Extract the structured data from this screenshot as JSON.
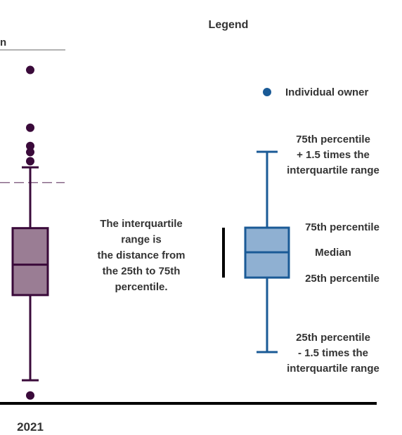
{
  "colors": {
    "data_box_stroke": "#3a0a3a",
    "data_box_fill": "#9a7d94",
    "data_points": "#3a0a3a",
    "legend_box_stroke": "#1a5a96",
    "legend_box_fill": "#8fb0d2",
    "legend_dot": "#1a5a96",
    "reference_line": "#8a6a8a",
    "axis": "#000000",
    "text": "#333333"
  },
  "chart_data": {
    "type": "box",
    "title": "",
    "legend_title": "Legend",
    "header_fragment": "n",
    "x_categories": [
      "2021"
    ],
    "boxes": [
      {
        "category": "2021",
        "whisker_high": 7.4,
        "q3": 5.4,
        "median": 4.2,
        "q1": 3.2,
        "whisker_low": 0.4,
        "outliers": [
          10.6,
          8.7,
          8.1,
          7.9,
          7.6,
          -0.1
        ]
      }
    ],
    "reference_line_value": 6.9,
    "yrange": [
      -1.4,
      12.9
    ],
    "grid": false,
    "legend": {
      "placement": "right",
      "dot_label": "Individual owner",
      "upper_whisker_label": [
        "75th percentile",
        "+ 1.5 times the",
        "interquartile range"
      ],
      "q3_label": "75th percentile",
      "median_label": "Median",
      "q1_label": "25th percentile",
      "lower_whisker_label": [
        "25th percentile",
        "- 1.5 times the",
        "interquartile range"
      ]
    },
    "iqr_annotation": [
      "The interquartile",
      "range is",
      "the distance from",
      "the 25th to 75th",
      "percentile."
    ]
  }
}
